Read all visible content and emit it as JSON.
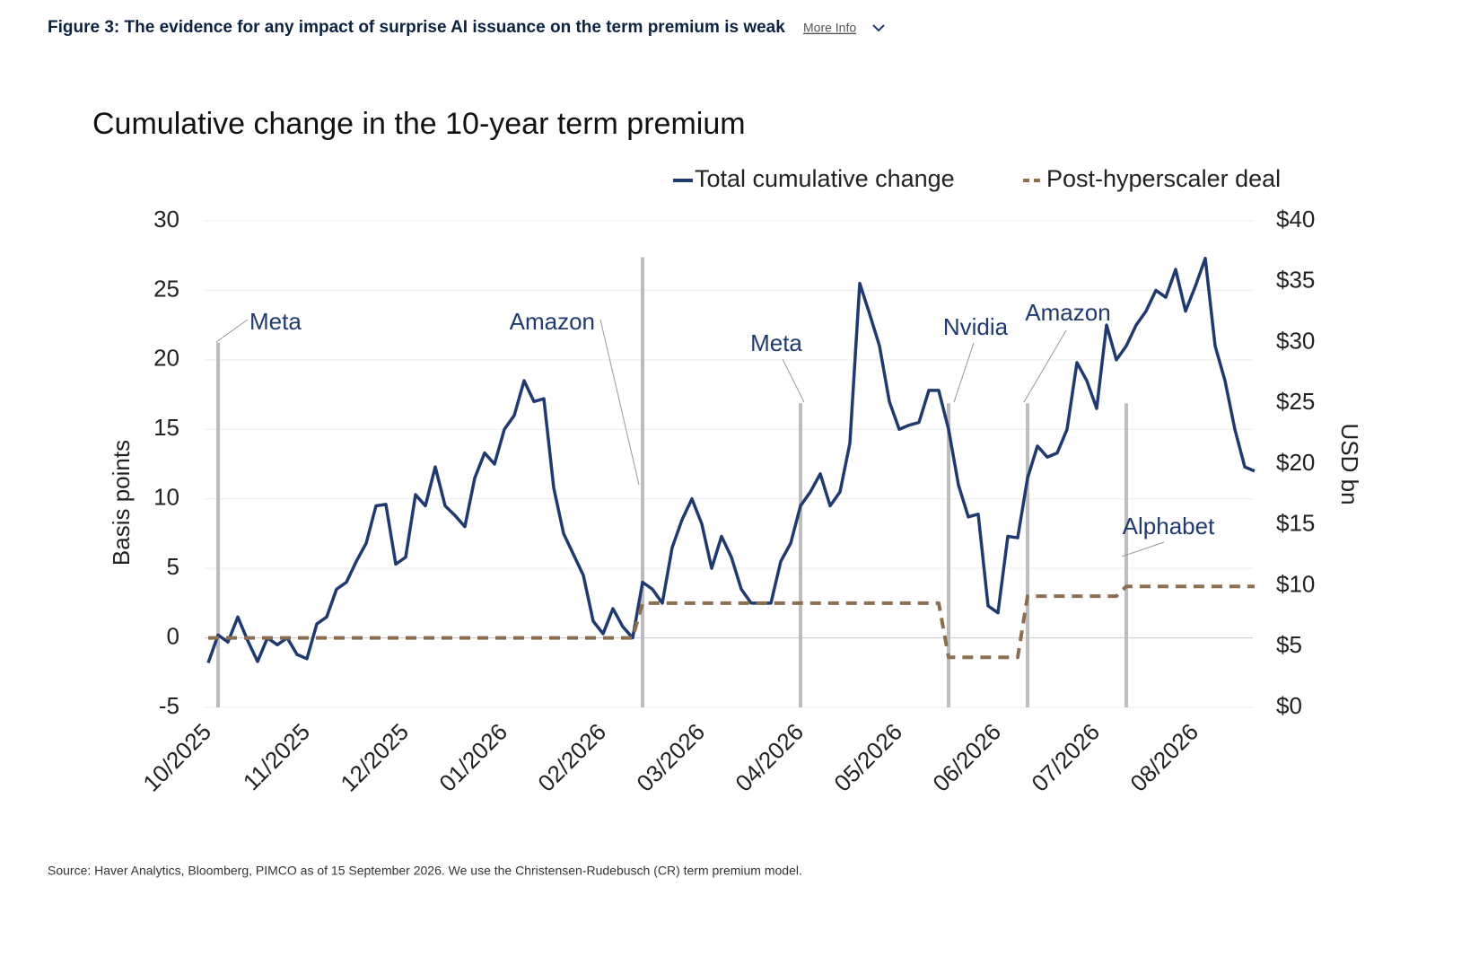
{
  "header": {
    "title": "Figure 3: The evidence for any impact of surprise AI issuance on the term premium is weak",
    "more_info": "More Info"
  },
  "chart_data": {
    "type": "line",
    "title": "Cumulative change in the 10-year term premium",
    "y_label": "Basis points",
    "y2_label": "USD bn",
    "categories": [
      "10/2025",
      null,
      null,
      null,
      null,
      null,
      null,
      null,
      null,
      null,
      "11/2025",
      null,
      null,
      null,
      null,
      null,
      null,
      null,
      null,
      null,
      "12/2025",
      null,
      null,
      null,
      null,
      null,
      null,
      null,
      null,
      null,
      "01/2026",
      null,
      null,
      null,
      null,
      null,
      null,
      null,
      null,
      null,
      "02/2026",
      null,
      null,
      null,
      null,
      null,
      null,
      null,
      null,
      null,
      "03/2026",
      null,
      null,
      null,
      null,
      null,
      null,
      null,
      null,
      null,
      "04/2026",
      null,
      null,
      null,
      null,
      null,
      null,
      null,
      null,
      null,
      "05/2026",
      null,
      null,
      null,
      null,
      null,
      null,
      null,
      null,
      null,
      "06/2026",
      null,
      null,
      null,
      null,
      null,
      null,
      null,
      null,
      null,
      "07/2026",
      null,
      null,
      null,
      null,
      null,
      null,
      null,
      null,
      null,
      "08/2026",
      null,
      null,
      null,
      null,
      null,
      null
    ],
    "series": [
      {
        "name": "Total cumulative change",
        "color": "#1f3a6e",
        "dashed": false,
        "values": [
          -1.8,
          0.2,
          -0.3,
          1.5,
          -0.2,
          -1.7,
          0,
          -0.5,
          0,
          -1.2,
          -1.5,
          1.0,
          1.5,
          3.5,
          4.0,
          5.5,
          6.8,
          9.5,
          9.6,
          5.3,
          5.8,
          10.3,
          9.5,
          12.3,
          9.5,
          8.8,
          8.0,
          11.5,
          13.3,
          12.5,
          15.0,
          16.0,
          18.5,
          17.0,
          17.2,
          10.8,
          7.5,
          6.0,
          4.5,
          1.2,
          0.3,
          2.1,
          0.8,
          0.0,
          4.0,
          3.5,
          2.5,
          6.5,
          8.5,
          10.0,
          8.2,
          5.0,
          7.3,
          5.8,
          3.5,
          2.5,
          2.5,
          2.5,
          5.5,
          6.8,
          9.5,
          10.5,
          11.8,
          9.5,
          10.5,
          14.0,
          25.5,
          23.3,
          21.0,
          17.0,
          15.0,
          15.3,
          15.5,
          17.8,
          17.8,
          15.0,
          11.0,
          8.7,
          8.9,
          2.3,
          1.8,
          7.3,
          7.2,
          11.5,
          13.8,
          13.0,
          13.3,
          15.0,
          19.8,
          18.5,
          16.5,
          22.5,
          20.0,
          21.0,
          22.5,
          23.5,
          25.0,
          24.5,
          26.5,
          23.5,
          25.3,
          27.3,
          21.0,
          18.5,
          15.0,
          12.3,
          12.0
        ]
      },
      {
        "name": "Post-hyperscaler deal",
        "color": "#8b6f4e",
        "dashed": true,
        "values": [
          0,
          0,
          0,
          0,
          0,
          0,
          0,
          0,
          0,
          0,
          0,
          0,
          0,
          0,
          0,
          0,
          0,
          0,
          0,
          0,
          0,
          0,
          0,
          0,
          0,
          0,
          0,
          0,
          0,
          0,
          0,
          0,
          0,
          0,
          0,
          0,
          0,
          0,
          0,
          0,
          0,
          0,
          0,
          0,
          2.5,
          2.5,
          2.5,
          2.5,
          2.5,
          2.5,
          2.5,
          2.5,
          2.5,
          2.5,
          2.5,
          2.5,
          2.5,
          2.5,
          2.5,
          2.5,
          2.5,
          2.5,
          2.5,
          2.5,
          2.5,
          2.5,
          2.5,
          2.5,
          2.5,
          2.5,
          2.5,
          2.5,
          2.5,
          2.5,
          2.5,
          -1.4,
          -1.4,
          -1.4,
          -1.4,
          -1.4,
          -1.4,
          -1.4,
          -1.4,
          3.0,
          3.0,
          3.0,
          3.0,
          3.0,
          3.0,
          3.0,
          3.0,
          3.0,
          3.0,
          3.7,
          3.7,
          3.7,
          3.7,
          3.7,
          3.7,
          3.7,
          3.7,
          3.7,
          3.7,
          3.7,
          3.7,
          3.7,
          3.7
        ]
      }
    ],
    "events": {
      "axis": "y2",
      "color": "#bdbdbd",
      "labels": [
        "Meta",
        "Amazon",
        "Meta",
        "Nvidia",
        "Amazon",
        "Alphabet"
      ],
      "x": [
        1,
        44,
        60,
        75,
        83,
        93
      ],
      "values": [
        30,
        37,
        25,
        25,
        25,
        25
      ]
    },
    "ylim": [
      -5,
      30
    ],
    "yticks": [
      30,
      25,
      20,
      15,
      10,
      5,
      0,
      -5
    ],
    "y2lim": [
      0,
      40
    ],
    "y2ticks": [
      {
        "value": 40,
        "label": "$40"
      },
      {
        "value": 35,
        "label": "$35"
      },
      {
        "value": 30,
        "label": "$30"
      },
      {
        "value": 25,
        "label": "$25"
      },
      {
        "value": 20,
        "label": "$20"
      },
      {
        "value": 15,
        "label": "$15"
      },
      {
        "value": 10,
        "label": "$10"
      },
      {
        "value": 5,
        "label": "$5"
      },
      {
        "value": 0,
        "label": "$0"
      }
    ],
    "grid": true
  },
  "footer": {
    "source": "Source: Haver Analytics, Bloomberg, PIMCO as of 15 September 2026. We use the Christensen-Rudebusch (CR) term premium model."
  }
}
